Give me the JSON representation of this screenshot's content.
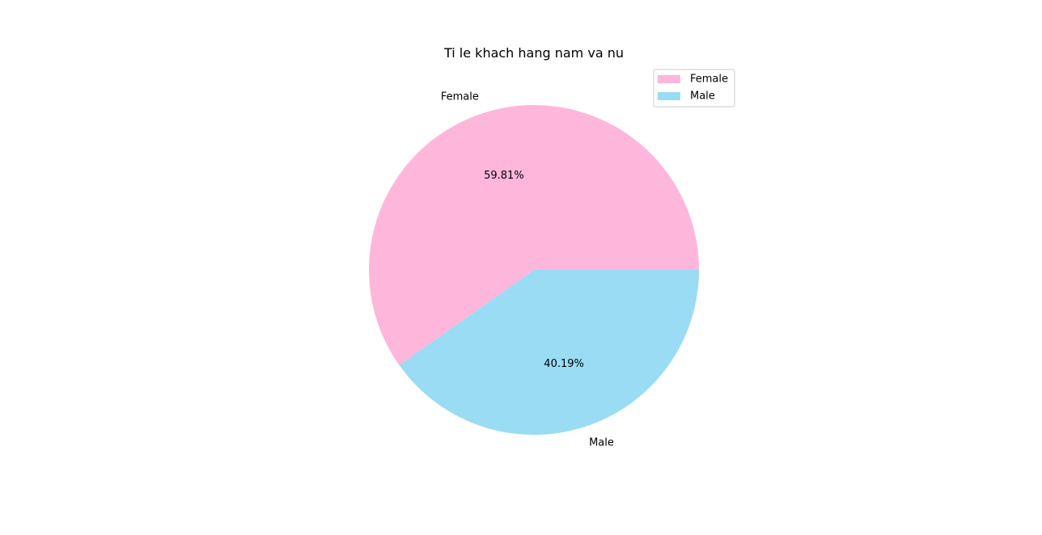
{
  "chart_data": {
    "type": "pie",
    "title": "Ti le khach hang nam va nu",
    "categories": [
      "Female",
      "Male"
    ],
    "values": [
      59.81,
      40.19
    ],
    "value_labels": [
      "59.81%",
      "40.19%"
    ],
    "colors": [
      "#ffb6db",
      "#99dcf4"
    ],
    "start_angle_deg": 0,
    "direction": "counterclockwise",
    "legend": {
      "position": "top-right",
      "entries": [
        "Female",
        "Male"
      ]
    }
  }
}
